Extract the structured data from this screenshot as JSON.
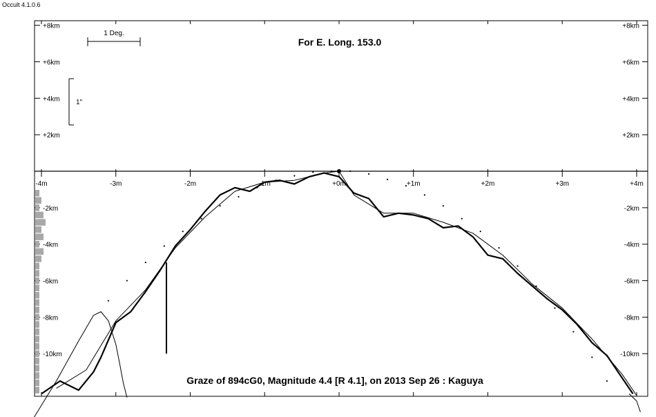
{
  "window": {
    "title": "Occult 4.1.0.6"
  },
  "chart_data": {
    "type": "line",
    "heading": "For E. Long. 153.0",
    "footer": "Graze of  894cG0,  Magnitude 4.4 [R 4.1],  on 2013 Sep 26  :  Kaguya",
    "x_axis": {
      "unit": "minutes",
      "range": [
        -4,
        4
      ],
      "ticks": [
        -4,
        -3,
        -2,
        -1,
        0,
        1,
        2,
        3,
        4
      ],
      "tick_labels": [
        "-4m",
        "-3m",
        "-2m",
        "-1m",
        "+0m",
        "+1m",
        "+2m",
        "+3m",
        "+4m"
      ]
    },
    "y_axis": {
      "unit": "km",
      "range": [
        -12.4,
        8.2
      ],
      "upper_ticks": [
        8,
        6,
        4,
        2
      ],
      "upper_tick_labels": [
        "+8km",
        "+6km",
        "+4km",
        "+2km"
      ],
      "lower_ticks": [
        -2,
        -4,
        -6,
        -8,
        -10
      ],
      "lower_tick_labels": [
        "-2km",
        "-4km",
        "-6km",
        "-8km",
        "-10km"
      ]
    },
    "scale_bars": {
      "degree_label": "1 Deg.",
      "arcsec_label": "1\""
    },
    "center_point": {
      "x": 0,
      "y": 0
    },
    "vertical_marker": {
      "x": -2.32,
      "y_top": -5.0,
      "y_bottom": -10.0
    },
    "series": [
      {
        "kind": "limb_profile",
        "x": [
          -4.0,
          -3.75,
          -3.5,
          -3.3,
          -3.2,
          -3.0,
          -2.8,
          -2.6,
          -2.4,
          -2.2,
          -2.0,
          -1.8,
          -1.6,
          -1.4,
          -1.2,
          -1.0,
          -0.8,
          -0.6,
          -0.4,
          -0.2,
          0.0,
          0.2,
          0.4,
          0.6,
          0.8,
          1.0,
          1.2,
          1.4,
          1.6,
          1.8,
          2.0,
          2.2,
          2.4,
          2.6,
          2.8,
          3.0,
          3.2,
          3.4,
          3.6,
          3.8,
          3.95
        ],
        "y": [
          -12.2,
          -11.5,
          -12.0,
          -11.0,
          -10.2,
          -8.3,
          -7.7,
          -6.6,
          -5.4,
          -4.1,
          -3.2,
          -2.2,
          -1.3,
          -0.9,
          -1.1,
          -0.6,
          -0.5,
          -0.7,
          -0.3,
          -0.1,
          -0.3,
          -1.2,
          -1.5,
          -2.5,
          -2.3,
          -2.4,
          -2.6,
          -3.1,
          -3.0,
          -3.6,
          -4.6,
          -4.8,
          -5.6,
          -6.3,
          -7.0,
          -7.6,
          -8.4,
          -9.4,
          -10.1,
          -11.3,
          -12.2
        ]
      },
      {
        "kind": "smoothed_limb",
        "x": [
          -3.8,
          -3.4,
          -3.0,
          -2.6,
          -2.2,
          -1.8,
          -1.4,
          -1.0,
          -0.6,
          -0.2,
          0.0,
          0.2,
          0.6,
          1.0,
          1.4,
          1.8,
          2.2,
          2.6,
          3.0,
          3.4,
          3.8,
          4.0
        ],
        "y": [
          -11.9,
          -10.9,
          -8.2,
          -6.5,
          -4.2,
          -2.5,
          -1.1,
          -0.6,
          -0.5,
          -0.1,
          0.0,
          -1.3,
          -2.3,
          -2.3,
          -2.8,
          -3.4,
          -4.6,
          -6.2,
          -7.5,
          -9.2,
          -11.1,
          -12.3
        ]
      },
      {
        "kind": "mean_limb_dotted",
        "x": [
          -3.1,
          -2.85,
          -2.6,
          -2.35,
          -2.1,
          -1.85,
          -1.6,
          -1.35,
          -1.1,
          -0.85,
          -0.6,
          -0.35,
          -0.1,
          0.15,
          0.4,
          0.65,
          0.9,
          1.15,
          1.4,
          1.65,
          1.9,
          2.15,
          2.4,
          2.65,
          2.9,
          3.15,
          3.4,
          3.6
        ],
        "y": [
          -7.1,
          -6.0,
          -5.0,
          -4.1,
          -3.3,
          -2.6,
          -1.9,
          -1.4,
          -0.9,
          -0.5,
          -0.25,
          -0.05,
          0.0,
          0.0,
          -0.15,
          -0.45,
          -0.8,
          -1.3,
          -1.9,
          -2.6,
          -3.3,
          -4.2,
          -5.2,
          -6.3,
          -7.5,
          -8.8,
          -10.2,
          -11.5
        ]
      },
      {
        "kind": "observer_density_curve",
        "x": [
          -4.1,
          -3.8,
          -3.5,
          -3.3,
          -3.2,
          -3.1,
          -3.0,
          -2.95,
          -2.9,
          -2.85
        ],
        "y": [
          -13.5,
          -11.5,
          -9.3,
          -7.9,
          -7.7,
          -8.2,
          -9.5,
          -10.5,
          -11.6,
          -12.4
        ]
      },
      {
        "kind": "right_edge_curve",
        "x": [
          3.9,
          4.0,
          4.05
        ],
        "y": [
          -12.2,
          -12.6,
          -13.2
        ]
      }
    ],
    "histogram": {
      "y_bins": [
        -1.2,
        -1.6,
        -2.0,
        -2.4,
        -2.8,
        -3.2,
        -3.6,
        -4.0,
        -4.4,
        -4.8,
        -5.2,
        -5.6,
        -6.0,
        -6.4,
        -6.8,
        -7.2,
        -7.6,
        -8.0,
        -8.4,
        -8.8,
        -9.2,
        -9.6,
        -10.0,
        -10.4,
        -10.8,
        -11.2,
        -11.6,
        -12.0
      ],
      "counts": [
        2,
        3,
        2,
        4,
        5,
        3,
        4,
        2,
        4,
        3,
        2,
        2,
        2,
        2,
        2,
        2,
        2,
        2,
        2,
        2,
        2,
        2,
        2,
        2,
        2,
        2,
        2,
        2
      ]
    }
  }
}
